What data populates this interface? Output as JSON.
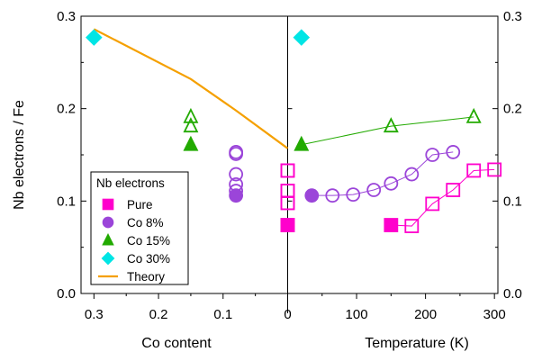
{
  "chart_data": {
    "type": "scatter",
    "ylabel": "Nb electrons / Fe",
    "ylim": [
      0,
      0.3
    ],
    "yticks": [
      "0.0",
      "0.1",
      "0.2",
      "0.3"
    ],
    "grid": false,
    "panels": [
      {
        "xlabel": "Co content",
        "xlim": [
          0.32,
          0
        ],
        "xticks": [
          "0.3",
          "0.2",
          "0.1",
          "0"
        ],
        "xtick_values": [
          0.3,
          0.2,
          0.1,
          0
        ]
      },
      {
        "xlabel": "Temperature (K)",
        "xlim": [
          0,
          305
        ],
        "xticks": [
          "0",
          "100",
          "200",
          "300"
        ],
        "xtick_values": [
          0,
          100,
          200,
          300
        ]
      }
    ],
    "legend": {
      "title": "Nb electrons",
      "position": "bottom-left",
      "entries": [
        {
          "label": "Pure",
          "color": "#ff00cc",
          "marker": "square"
        },
        {
          "label": "Co 8%",
          "color": "#9b45d9",
          "marker": "circle"
        },
        {
          "label": "Co 15%",
          "color": "#22aa00",
          "marker": "triangle"
        },
        {
          "label": "Co 30%",
          "color": "#00e5e5",
          "marker": "diamond"
        },
        {
          "label": "Theory",
          "color": "#f5a000",
          "marker": "line"
        }
      ]
    },
    "theory": {
      "name": "Theory",
      "color": "#f5a000",
      "x": [
        0.3,
        0.15,
        0.08,
        0
      ],
      "y": [
        0.286,
        0.232,
        0.198,
        0.157
      ]
    },
    "series_co_content": [
      {
        "name": "Pure",
        "color": "#ff00cc",
        "marker": "square",
        "x": 0,
        "filled": [
          0.074
        ],
        "open": [
          0.098,
          0.111,
          0.133
        ]
      },
      {
        "name": "Co 8%",
        "color": "#9b45d9",
        "marker": "circle",
        "x": 0.08,
        "filled": [
          0.106
        ],
        "open": [
          0.111,
          0.118,
          0.129,
          0.151,
          0.153
        ]
      },
      {
        "name": "Co 15%",
        "color": "#22aa00",
        "marker": "triangle",
        "x": 0.15,
        "filled": [
          0.161
        ],
        "open": [
          0.181,
          0.191
        ]
      },
      {
        "name": "Co 30%",
        "color": "#00e5e5",
        "marker": "diamond",
        "x": 0.3,
        "filled": [
          0.277
        ],
        "open": []
      }
    ],
    "series_temperature": [
      {
        "name": "Pure",
        "color": "#ff00cc",
        "marker": "square",
        "filled": {
          "x": [
            0,
            150
          ],
          "y": [
            0.074,
            0.074
          ]
        },
        "open": {
          "x": [
            0,
            0,
            0,
            180,
            210,
            240,
            270,
            300
          ],
          "y": [
            0.098,
            0.111,
            0.133,
            0.073,
            0.097,
            0.112,
            0.133,
            0.134
          ]
        }
      },
      {
        "name": "Co 8%",
        "color": "#9b45d9",
        "marker": "circle",
        "filled": {
          "x": [
            35
          ],
          "y": [
            0.106
          ]
        },
        "open": {
          "x": [
            65,
            95,
            125,
            150,
            180,
            210,
            240
          ],
          "y": [
            0.106,
            0.107,
            0.112,
            0.119,
            0.129,
            0.15,
            0.153
          ]
        }
      },
      {
        "name": "Co 15%",
        "color": "#22aa00",
        "marker": "triangle",
        "filled": {
          "x": [
            20
          ],
          "y": [
            0.161
          ]
        },
        "open": {
          "x": [
            150,
            270
          ],
          "y": [
            0.181,
            0.191
          ]
        }
      },
      {
        "name": "Co 30%",
        "color": "#00e5e5",
        "marker": "diamond",
        "filled": {
          "x": [
            20
          ],
          "y": [
            0.277
          ]
        },
        "open": {
          "x": [],
          "y": []
        }
      }
    ]
  }
}
